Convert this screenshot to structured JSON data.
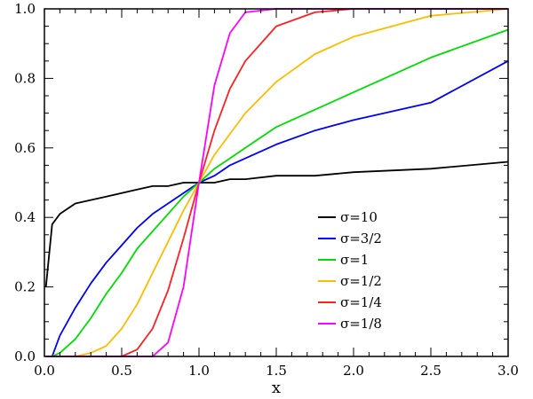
{
  "chart_data": {
    "type": "line",
    "title": "",
    "xlabel": "x",
    "ylabel": "",
    "xlim": [
      0.0,
      3.0
    ],
    "ylim": [
      0.0,
      1.0
    ],
    "grid": false,
    "legend_position": "right-center",
    "x_ticks": [
      "0.0",
      "0.5",
      "1.0",
      "1.5",
      "2.0",
      "2.5",
      "3.0"
    ],
    "y_ticks": [
      "0.0",
      "0.2",
      "0.4",
      "0.6",
      "0.8",
      "1.0"
    ],
    "x": [
      0.01,
      0.05,
      0.1,
      0.2,
      0.3,
      0.4,
      0.5,
      0.6,
      0.7,
      0.8,
      0.9,
      1.0,
      1.1,
      1.2,
      1.3,
      1.5,
      1.75,
      2.0,
      2.5,
      3.0
    ],
    "series": [
      {
        "name": "σ=10",
        "color": "#000000",
        "values": [
          0.2,
          0.38,
          0.41,
          0.44,
          0.45,
          0.46,
          0.47,
          0.48,
          0.49,
          0.49,
          0.5,
          0.5,
          0.5,
          0.51,
          0.51,
          0.52,
          0.52,
          0.53,
          0.54,
          0.56
        ]
      },
      {
        "name": "σ=3/2",
        "color": "#0000ff",
        "values": [
          0.0,
          0.0,
          0.06,
          0.14,
          0.21,
          0.27,
          0.32,
          0.37,
          0.41,
          0.44,
          0.47,
          0.5,
          0.52,
          0.55,
          0.57,
          0.61,
          0.65,
          0.68,
          0.73,
          0.85
        ]
      },
      {
        "name": "σ=1",
        "color": "#00dd00",
        "values": [
          0.0,
          0.0,
          0.01,
          0.05,
          0.11,
          0.18,
          0.24,
          0.31,
          0.36,
          0.41,
          0.46,
          0.5,
          0.54,
          0.57,
          0.6,
          0.66,
          0.71,
          0.76,
          0.86,
          0.94
        ]
      },
      {
        "name": "σ=1/2",
        "color": "#ffbb00",
        "values": [
          0.0,
          0.0,
          0.0,
          0.0,
          0.01,
          0.03,
          0.08,
          0.15,
          0.24,
          0.33,
          0.42,
          0.5,
          0.58,
          0.64,
          0.7,
          0.79,
          0.87,
          0.92,
          0.98,
          1.0
        ]
      },
      {
        "name": "σ=1/4",
        "color": "#ff2020",
        "values": [
          0.0,
          0.0,
          0.0,
          0.0,
          0.0,
          0.0,
          0.0,
          0.02,
          0.08,
          0.19,
          0.34,
          0.5,
          0.65,
          0.77,
          0.85,
          0.95,
          0.99,
          1.0,
          1.0,
          1.0
        ]
      },
      {
        "name": "σ=1/8",
        "color": "#ff00ff",
        "values": [
          0.0,
          0.0,
          0.0,
          0.0,
          0.0,
          0.0,
          0.0,
          0.0,
          0.0,
          0.04,
          0.2,
          0.5,
          0.78,
          0.93,
          0.99,
          1.0,
          1.0,
          1.0,
          1.0,
          1.0
        ]
      }
    ]
  }
}
